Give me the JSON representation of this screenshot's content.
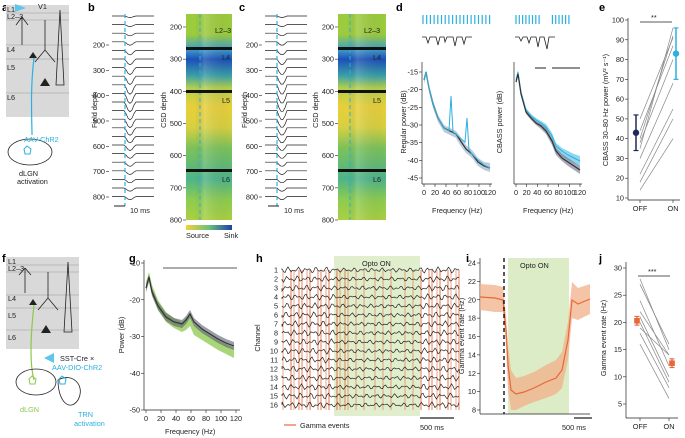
{
  "panels": {
    "a": "a",
    "b": "b",
    "c": "c",
    "d": "d",
    "e": "e",
    "f": "f",
    "g": "g",
    "h": "h",
    "i": "i",
    "j": "j"
  },
  "a": {
    "region": "V1",
    "layers": [
      "L1",
      "L2–3",
      "L4",
      "L5",
      "L6"
    ],
    "virus": "AAV-ChR2",
    "target": "dLGN",
    "target2": "activation"
  },
  "b": {
    "ylabel": "Field depth",
    "ylabel2": "CSD depth",
    "field_ticks": [
      "200",
      "300",
      "400",
      "500",
      "600",
      "700",
      "800"
    ],
    "csd_ticks": [
      "200",
      "300",
      "400",
      "500",
      "600",
      "700",
      "800"
    ],
    "csd_layers": [
      "L2–3",
      "L4",
      "L5",
      "L6"
    ],
    "scale": "10 ms",
    "cbar_left": "Source",
    "cbar_right": "Sink"
  },
  "c": {
    "ylabel": "Field depth",
    "ylabel2": "CSD depth",
    "field_ticks": [
      "200",
      "300",
      "400",
      "500",
      "600",
      "700",
      "800"
    ],
    "csd_ticks": [
      "200",
      "300",
      "400",
      "500",
      "600",
      "700",
      "800"
    ],
    "csd_layers": [
      "L2–3",
      "L4",
      "L5",
      "L6"
    ],
    "scale": "10 ms"
  },
  "d": {
    "ylabel_left": "Regular power (dB)",
    "ylabel_right": "CBASS power (dB)",
    "xlabel": "Frequency (Hz)",
    "yticks": [
      "-15",
      "-20",
      "-25",
      "-30",
      "-35",
      "-40",
      "-45"
    ],
    "xticks": [
      "0",
      "20",
      "40",
      "60",
      "80",
      "100",
      "120"
    ]
  },
  "e": {
    "ylabel": "CBASS 30–80 Hz power (mV² s⁻¹)",
    "yticks": [
      "10",
      "20",
      "30",
      "40",
      "50",
      "60",
      "70",
      "80",
      "90",
      "100"
    ],
    "xticks": [
      "OFF",
      "ON"
    ],
    "sig": "**",
    "colors": {
      "off": "#1f2a5a",
      "on": "#2bb0e0"
    },
    "chart_data": {
      "type": "scatter",
      "categories": [
        "OFF",
        "ON"
      ],
      "mean": [
        43,
        83
      ],
      "err": [
        9,
        13
      ],
      "ylim": [
        10,
        100
      ],
      "pairs": [
        [
          35,
          96
        ],
        [
          40,
          92
        ],
        [
          50,
          91
        ],
        [
          44,
          87
        ],
        [
          38,
          80
        ],
        [
          30,
          68
        ],
        [
          22,
          55
        ],
        [
          18,
          50
        ],
        [
          14,
          40
        ]
      ]
    }
  },
  "f": {
    "layers": [
      "L1",
      "L2–3",
      "L4",
      "L5",
      "L6"
    ],
    "cre": "SST-Cre ×",
    "virus": "AAV-DIO-ChR2",
    "target": "dLGN",
    "trn": "TRN",
    "trn2": "activation"
  },
  "g": {
    "ylabel": "Power (dB)",
    "xlabel": "Frequency (Hz)",
    "yticks": [
      "-10",
      "-20",
      "-30",
      "-40",
      "-50"
    ],
    "xticks": [
      "0",
      "20",
      "40",
      "60",
      "80",
      "100",
      "120"
    ]
  },
  "h": {
    "ylabel": "Channel",
    "channels": [
      "1",
      "2",
      "3",
      "4",
      "5",
      "6",
      "7",
      "8",
      "9",
      "10",
      "11",
      "12",
      "13",
      "14",
      "15",
      "16"
    ],
    "opto": "Opto ON",
    "legend": "Gamma events",
    "scale": "500 ms"
  },
  "i": {
    "ylabel": "Gamma event rate (Hz)",
    "yticks": [
      "24",
      "22",
      "20",
      "18",
      "16",
      "14",
      "12",
      "10",
      "8"
    ],
    "opto": "Opto ON",
    "scale": "500 ms"
  },
  "j": {
    "ylabel": "Gamma event rate (Hz)",
    "yticks": [
      "30",
      "25",
      "20",
      "15",
      "10",
      "5"
    ],
    "xticks": [
      "OFF",
      "ON"
    ],
    "sig": "***",
    "colors": {
      "mean": "#e6683a"
    },
    "chart_data": {
      "type": "scatter",
      "categories": [
        "OFF",
        "ON"
      ],
      "mean": [
        20.3,
        12.5
      ],
      "err": [
        0.8,
        0.8
      ],
      "ylim": [
        5,
        30
      ],
      "pairs": [
        [
          28,
          15
        ],
        [
          27,
          16
        ],
        [
          24,
          12
        ],
        [
          22,
          14
        ],
        [
          21,
          10
        ],
        [
          20,
          9
        ],
        [
          19,
          14
        ],
        [
          18,
          8
        ],
        [
          16,
          6
        ]
      ]
    }
  }
}
